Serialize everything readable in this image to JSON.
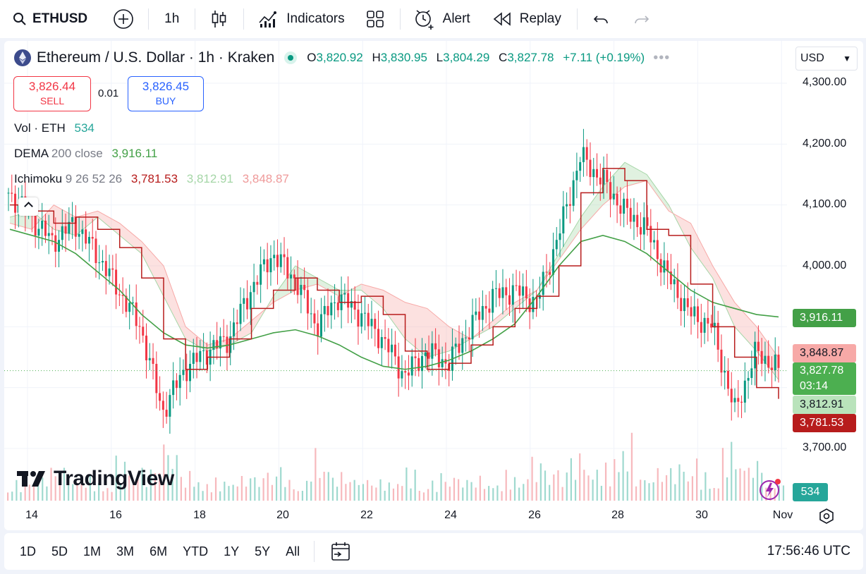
{
  "toolbar": {
    "symbol": "ETHUSD",
    "interval": "1h",
    "indicators_label": "Indicators",
    "alert_label": "Alert",
    "replay_label": "Replay",
    "icons": [
      "search-icon",
      "add-symbol-icon",
      "candles-icon",
      "indicators-icon",
      "layout-grid-icon",
      "alert-clock-icon",
      "replay-icon",
      "undo-icon",
      "redo-icon"
    ]
  },
  "legend": {
    "title": "Ethereum / U.S. Dollar · 1h · Kraken",
    "o_label": "O",
    "o": "3,820.92",
    "h_label": "H",
    "h": "3,830.95",
    "l_label": "L",
    "l": "3,804.29",
    "c_label": "C",
    "c": "3,827.78",
    "change": "+7.11 (+0.19%)",
    "currency": "USD"
  },
  "trade": {
    "sell_price": "3,826.44",
    "sell_label": "SELL",
    "spread": "0.01",
    "buy_price": "3,826.45",
    "buy_label": "BUY"
  },
  "indicators": {
    "vol": {
      "name": "Vol · ETH",
      "value": "534"
    },
    "dema": {
      "name": "DEMA",
      "params": "200 close",
      "value": "3,916.11"
    },
    "ichimoku": {
      "name": "Ichimoku",
      "params": "9 26 52 26",
      "v1": "3,781.53",
      "v2": "3,812.91",
      "v3": "3,848.87"
    }
  },
  "price_scale": {
    "ticks": [
      "4,300.00",
      "4,200.00",
      "4,100.00",
      "4,000.00",
      "3,700.00"
    ],
    "tags": {
      "dema": "3,916.11",
      "span_b": "3,848.87",
      "last": "3,827.78",
      "countdown": "03:14",
      "span_a": "3,812.91",
      "base": "3,781.53",
      "volume": "534"
    }
  },
  "time_axis": {
    "labels": [
      "14",
      "16",
      "18",
      "20",
      "22",
      "24",
      "26",
      "28",
      "30",
      "Nov"
    ]
  },
  "bottom": {
    "ranges": [
      "1D",
      "5D",
      "1M",
      "3M",
      "6M",
      "YTD",
      "1Y",
      "5Y",
      "All"
    ],
    "clock": "17:56:46 UTC"
  },
  "brand": {
    "logo_text": "TradingView"
  },
  "colors": {
    "up": "#089981",
    "down": "#f23645",
    "dema": "#43a047",
    "base_line": "#b71c1c",
    "cloud_up": "#a5d6a7",
    "cloud_down": "#f7a9a7"
  },
  "chart_data": {
    "type": "candlestick",
    "ylim": [
      3650,
      4320
    ],
    "x": [
      "Oct 14",
      "Oct 14.5",
      "Oct 15",
      "Oct 15.5",
      "Oct 16",
      "Oct 16.5",
      "Oct 17",
      "Oct 17.5",
      "Oct 18",
      "Oct 18.5",
      "Oct 19",
      "Oct 19.5",
      "Oct 20",
      "Oct 20.5",
      "Oct 21",
      "Oct 21.5",
      "Oct 22",
      "Oct 22.5",
      "Oct 23",
      "Oct 23.5",
      "Oct 24",
      "Oct 24.5",
      "Oct 25",
      "Oct 25.5",
      "Oct 26",
      "Oct 26.5",
      "Oct 27",
      "Oct 27.5",
      "Oct 28",
      "Oct 28.5",
      "Oct 29",
      "Oct 29.5",
      "Oct 30",
      "Oct 30.5",
      "Oct 31",
      "Oct 31.5"
    ],
    "price": [
      4120,
      4080,
      4040,
      4070,
      4020,
      3960,
      3900,
      3760,
      3830,
      3860,
      3880,
      3960,
      4020,
      3980,
      3900,
      3950,
      3920,
      3880,
      3820,
      3860,
      3840,
      3900,
      3950,
      3960,
      3940,
      4050,
      4180,
      4140,
      4090,
      4060,
      3980,
      3920,
      3900,
      3760,
      3860,
      3827.78
    ],
    "series": [
      {
        "name": "DEMA 200 close",
        "values": [
          4060,
          4050,
          4040,
          4020,
          3990,
          3960,
          3920,
          3890,
          3870,
          3865,
          3870,
          3880,
          3890,
          3895,
          3885,
          3870,
          3850,
          3835,
          3830,
          3835,
          3845,
          3860,
          3880,
          3905,
          3950,
          4000,
          4040,
          4050,
          4040,
          4020,
          3990,
          3960,
          3940,
          3930,
          3920,
          3916.11
        ]
      },
      {
        "name": "Ichimoku base",
        "values": [
          4100,
          4090,
          4070,
          4080,
          4060,
          4030,
          3980,
          3880,
          3830,
          3850,
          3880,
          3930,
          3960,
          3980,
          3960,
          3940,
          3950,
          3920,
          3860,
          3830,
          3840,
          3870,
          3900,
          3930,
          3950,
          4000,
          4120,
          4160,
          4140,
          4060,
          4050,
          3970,
          3900,
          3850,
          3800,
          3781.53
        ]
      },
      {
        "name": "Ichimoku span A",
        "values": [
          4080,
          4090,
          4060,
          4050,
          4080,
          4050,
          4020,
          3950,
          3880,
          3860,
          3870,
          3890,
          3950,
          4000,
          3980,
          3960,
          3960,
          3930,
          3880,
          3850,
          3860,
          3880,
          3900,
          3930,
          3960,
          4020,
          4080,
          4130,
          4170,
          4150,
          4100,
          4030,
          3980,
          3900,
          3860,
          3812.91
        ]
      },
      {
        "name": "Ichimoku span B",
        "values": [
          4070,
          4060,
          4100,
          4080,
          4090,
          4070,
          4040,
          4000,
          3900,
          3870,
          3880,
          3910,
          3940,
          3960,
          3970,
          3950,
          3970,
          3960,
          3940,
          3930,
          3900,
          3880,
          3910,
          3940,
          3960,
          4010,
          4060,
          4100,
          4130,
          4140,
          4090,
          4070,
          4000,
          3940,
          3900,
          3848.87
        ]
      }
    ],
    "volume": [
      0.3,
      0.4,
      0.5,
      0.35,
      0.3,
      0.6,
      0.5,
      0.9,
      0.4,
      0.3,
      0.35,
      0.4,
      0.5,
      0.3,
      0.7,
      0.4,
      0.35,
      0.3,
      0.45,
      0.3,
      0.4,
      0.35,
      0.3,
      0.4,
      0.6,
      0.5,
      0.7,
      0.5,
      0.9,
      0.4,
      0.5,
      0.6,
      0.4,
      0.8,
      0.6,
      0.3
    ],
    "last_price": 3827.78
  }
}
